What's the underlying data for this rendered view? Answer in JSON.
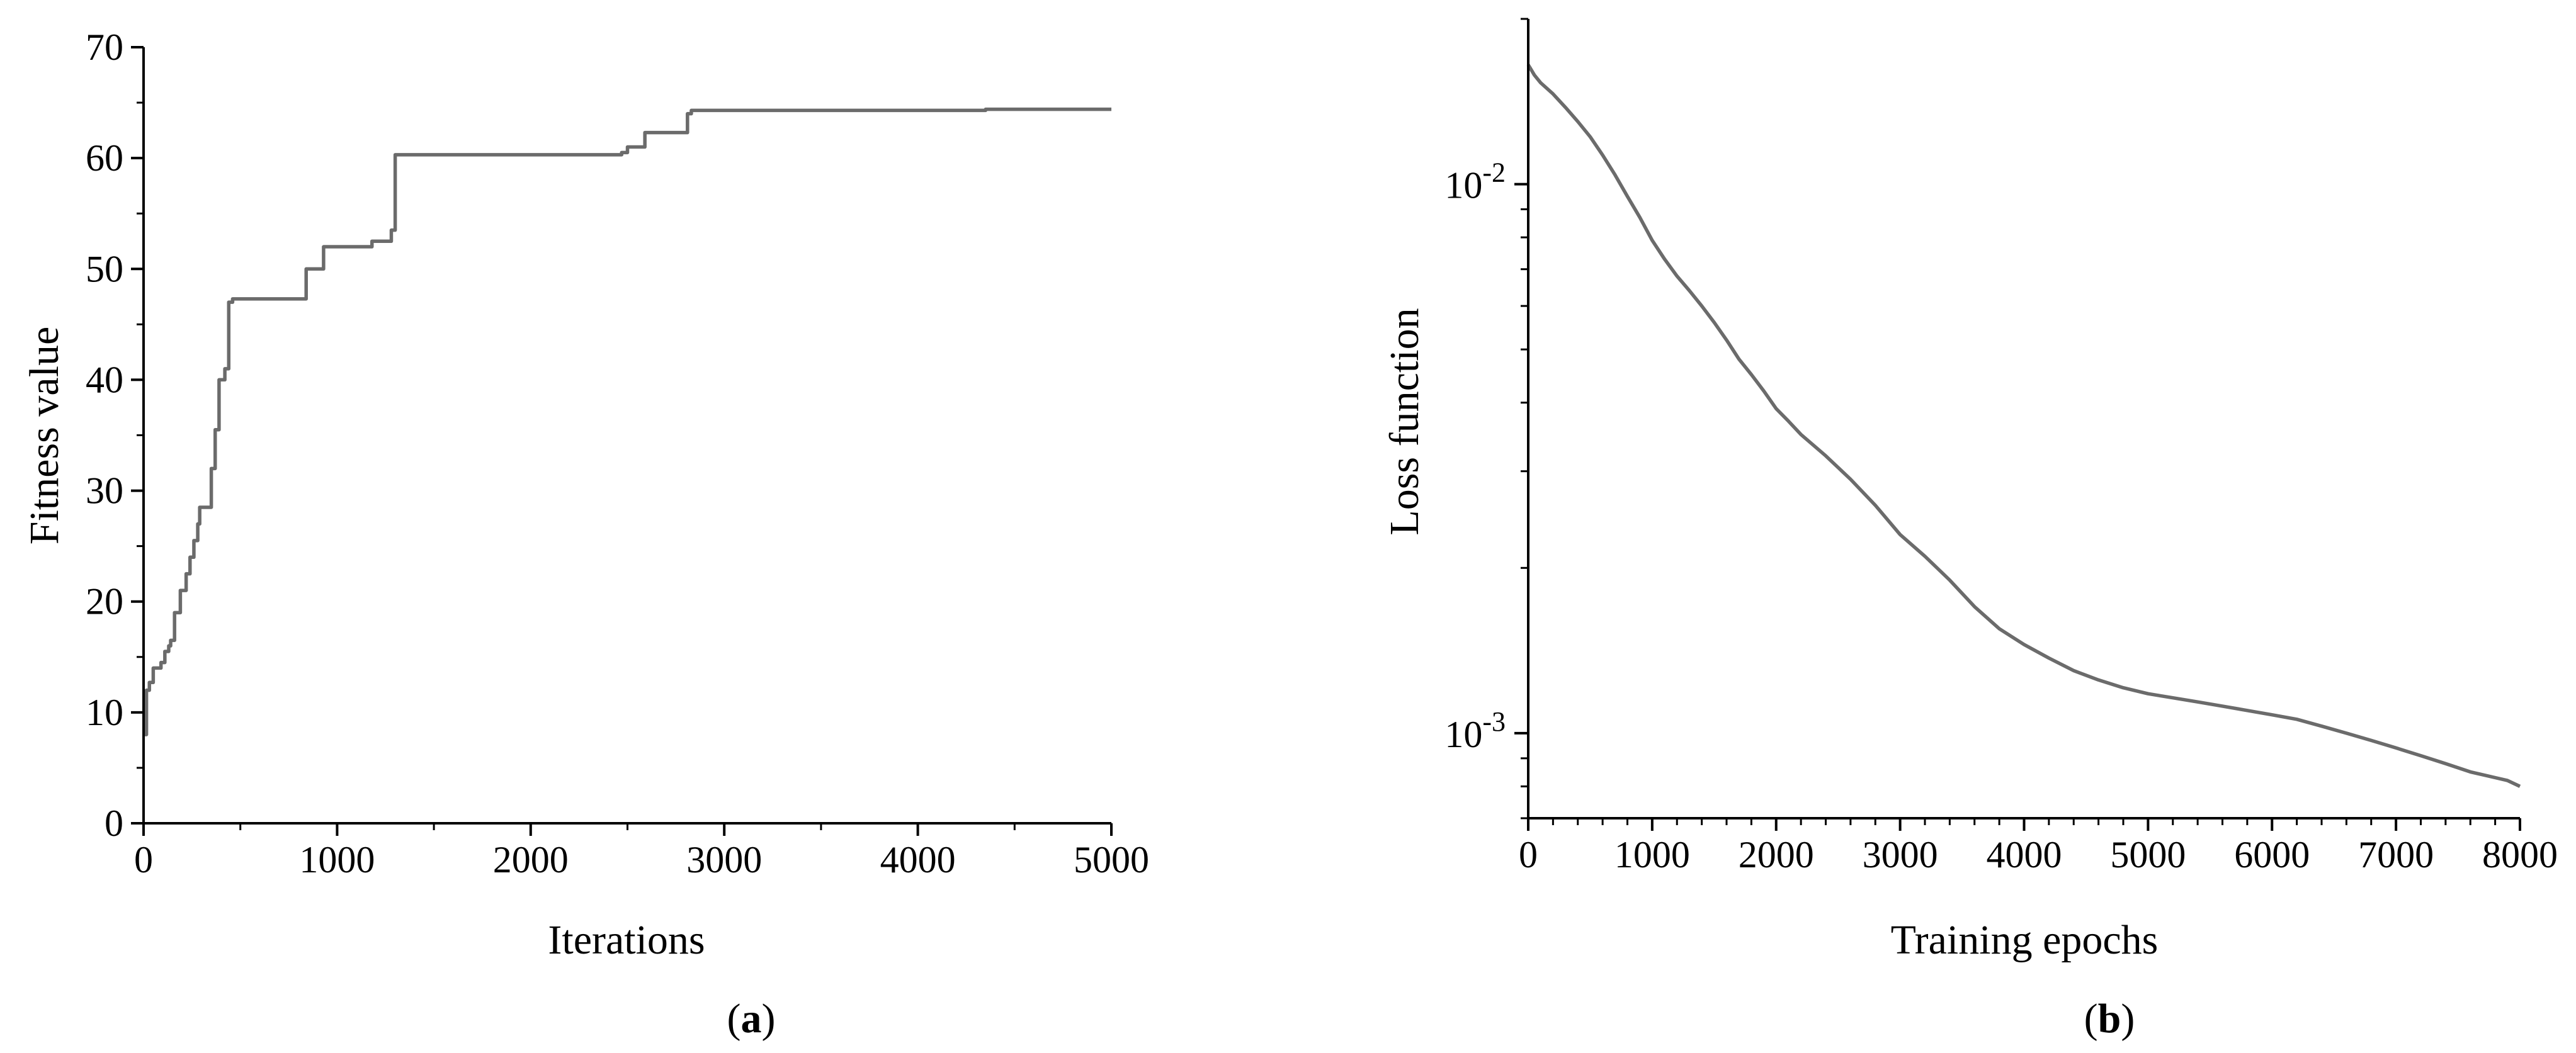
{
  "chart_data": [
    {
      "type": "line",
      "panel_label": "a",
      "title": "",
      "xlabel": "Iterations",
      "ylabel": "Fitness value",
      "xlim": [
        0,
        5000
      ],
      "ylim": [
        0,
        70
      ],
      "x_ticks": [
        0,
        1000,
        2000,
        3000,
        4000,
        5000
      ],
      "y_ticks": [
        0,
        10,
        20,
        30,
        40,
        50,
        60,
        70
      ],
      "x_tick_labels": [
        "0",
        "1000",
        "2000",
        "3000",
        "4000",
        "5000"
      ],
      "y_tick_labels": [
        "0",
        "10",
        "20",
        "30",
        "40",
        "50",
        "60",
        "70"
      ],
      "step": true,
      "line_color": "#6b6b6b",
      "series": [
        {
          "x": [
            0,
            15,
            30,
            50,
            90,
            110,
            130,
            140,
            160,
            190,
            220,
            240,
            260,
            280,
            290,
            300,
            350,
            370,
            390,
            420,
            440,
            460,
            840,
            930,
            1180,
            1280,
            1300,
            1310,
            1500,
            2470,
            2500,
            2590,
            2810,
            2830,
            3650,
            4350,
            5000
          ],
          "y": [
            8,
            12,
            12.7,
            14,
            14.5,
            15.5,
            16,
            16.5,
            19,
            21,
            22.5,
            24,
            25.5,
            27,
            28.5,
            28.5,
            32,
            35.5,
            40,
            41,
            47,
            47.3,
            50,
            52,
            52.5,
            53.5,
            60.3,
            60.3,
            60.3,
            60.5,
            61,
            62.3,
            64,
            64.3,
            64.3,
            64.4,
            64.4
          ]
        }
      ]
    },
    {
      "type": "line",
      "panel_label": "b",
      "title": "",
      "xlabel": "Training epochs",
      "ylabel": "Loss function",
      "xlim": [
        0,
        8000
      ],
      "ylim": [
        0.0007,
        0.02
      ],
      "yscale": "log",
      "x_ticks": [
        0,
        1000,
        2000,
        3000,
        4000,
        5000,
        6000,
        7000,
        8000
      ],
      "x_tick_labels": [
        "0",
        "1000",
        "2000",
        "3000",
        "4000",
        "5000",
        "6000",
        "7000",
        "8000"
      ],
      "y_ticks": [
        0.001,
        0.01
      ],
      "y_tick_labels": [
        {
          "base": "10",
          "exp": "-3"
        },
        {
          "base": "10",
          "exp": "-2"
        }
      ],
      "line_color": "#6b6b6b",
      "series": [
        {
          "x": [
            0,
            50,
            100,
            200,
            300,
            400,
            500,
            600,
            700,
            800,
            900,
            1000,
            1100,
            1200,
            1300,
            1400,
            1500,
            1600,
            1700,
            1800,
            1900,
            2000,
            2100,
            2200,
            2400,
            2600,
            2800,
            3000,
            3200,
            3400,
            3600,
            3800,
            4000,
            4200,
            4400,
            4600,
            4800,
            5000,
            5200,
            5400,
            5600,
            5800,
            6000,
            6200,
            6400,
            6600,
            6800,
            7000,
            7200,
            7400,
            7600,
            7800,
            7900,
            8000
          ],
          "y": [
            0.0165,
            0.0158,
            0.0153,
            0.0146,
            0.0138,
            0.013,
            0.0122,
            0.0113,
            0.0104,
            0.0095,
            0.0087,
            0.0079,
            0.0073,
            0.0068,
            0.0064,
            0.006,
            0.0056,
            0.0052,
            0.0048,
            0.0045,
            0.0042,
            0.0039,
            0.0037,
            0.0035,
            0.0032,
            0.0029,
            0.0026,
            0.0023,
            0.0021,
            0.0019,
            0.0017,
            0.00155,
            0.00145,
            0.00137,
            0.0013,
            0.00125,
            0.00121,
            0.00118,
            0.00116,
            0.00114,
            0.00112,
            0.0011,
            0.00108,
            0.00106,
            0.00103,
            0.001,
            0.00097,
            0.00094,
            0.00091,
            0.00088,
            0.00085,
            0.00083,
            0.00082,
            0.0008
          ]
        }
      ]
    }
  ]
}
